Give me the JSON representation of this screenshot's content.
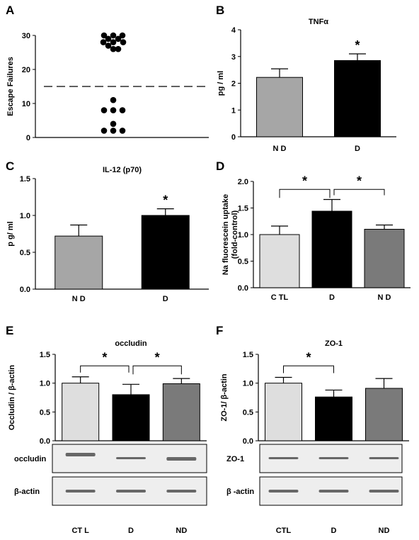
{
  "colors": {
    "dark_gray": "#a6a6a6",
    "black": "#000000",
    "light_gray": "#dedede",
    "mid_gray": "#7a7a7a",
    "blot_bg": "#eeeeee",
    "band": "#3a3a3a"
  },
  "chart_data": [
    {
      "panel": "A",
      "type": "scatter",
      "title": "",
      "ylabel": "Escape Failures",
      "ylim": [
        0,
        30
      ],
      "yticks": [
        "0",
        "10",
        "20",
        "30"
      ],
      "threshold_line": 15,
      "points": [
        30,
        30,
        30,
        29,
        29,
        28,
        28,
        28,
        27,
        26,
        26,
        11,
        8,
        8,
        8,
        4,
        2,
        2,
        2
      ]
    },
    {
      "panel": "B",
      "type": "bar",
      "title": "TNFα",
      "ylabel": "pg / ml",
      "ylim": [
        0,
        4
      ],
      "yticks": [
        "0",
        "1",
        "2",
        "3",
        "4"
      ],
      "categories": [
        "N D",
        "D"
      ],
      "values": [
        2.22,
        2.85
      ],
      "errors": [
        0.32,
        0.25
      ],
      "colors": [
        "#a6a6a6",
        "#000000"
      ],
      "stars": [
        {
          "label": "*",
          "bar": 1
        }
      ],
      "brackets": []
    },
    {
      "panel": "C",
      "type": "bar",
      "title": "IL-12 (p70)",
      "ylabel": "p g/ ml",
      "ylim": [
        0,
        1.5
      ],
      "yticks": [
        "0.0",
        "0.5",
        "1.0",
        "1.5"
      ],
      "categories": [
        "N D",
        "D"
      ],
      "values": [
        0.72,
        1.0
      ],
      "errors": [
        0.15,
        0.09
      ],
      "colors": [
        "#a6a6a6",
        "#000000"
      ],
      "stars": [
        {
          "label": "*",
          "bar": 1
        }
      ],
      "brackets": []
    },
    {
      "panel": "D",
      "type": "bar",
      "title": "",
      "ylabel": "Na fluorescein uptake (fold-control)",
      "ylim": [
        0,
        2.0
      ],
      "yticks": [
        "0.0",
        "0.5",
        "1.0",
        "1.5",
        "2.0"
      ],
      "categories": [
        "C TL",
        "D",
        "N D"
      ],
      "values": [
        1.0,
        1.44,
        1.1
      ],
      "errors": [
        0.16,
        0.22,
        0.08
      ],
      "colors": [
        "#dedede",
        "#000000",
        "#7a7a7a"
      ],
      "stars": [],
      "brackets": [
        {
          "from": 0,
          "to": 1,
          "label": "*",
          "level": 1.85
        },
        {
          "from": 1,
          "to": 2,
          "label": "*",
          "level": 1.85
        }
      ]
    },
    {
      "panel": "E",
      "type": "bar",
      "title": "occludin",
      "ylabel": "Occludin / β-actin",
      "ylim": [
        0,
        1.5
      ],
      "yticks": [
        "0.0",
        "0.5",
        "1.0",
        "1.5"
      ],
      "categories": [
        "CT L",
        "D",
        "ND"
      ],
      "values": [
        1.0,
        0.8,
        0.99
      ],
      "errors": [
        0.11,
        0.18,
        0.09
      ],
      "colors": [
        "#dedede",
        "#000000",
        "#7a7a7a"
      ],
      "stars": [],
      "brackets": [
        {
          "from": 0,
          "to": 1,
          "label": "*",
          "level": 1.3
        },
        {
          "from": 1,
          "to": 2,
          "label": "*",
          "level": 1.3
        }
      ],
      "blots": [
        "occludin",
        "β-actin"
      ]
    },
    {
      "panel": "F",
      "type": "bar",
      "title": "ZO-1",
      "ylabel": "ZO-1/ β-actin",
      "ylim": [
        0,
        1.5
      ],
      "yticks": [
        "0.0",
        "0.5",
        "1.0",
        "1.5"
      ],
      "categories": [
        "CTL",
        "D",
        "ND"
      ],
      "values": [
        1.0,
        0.76,
        0.91
      ],
      "errors": [
        0.1,
        0.12,
        0.17
      ],
      "colors": [
        "#dedede",
        "#000000",
        "#7a7a7a"
      ],
      "stars": [],
      "brackets": [
        {
          "from": 0,
          "to": 1,
          "label": "*",
          "level": 1.3
        }
      ],
      "blots": [
        "ZO-1",
        "β -actin"
      ]
    }
  ]
}
